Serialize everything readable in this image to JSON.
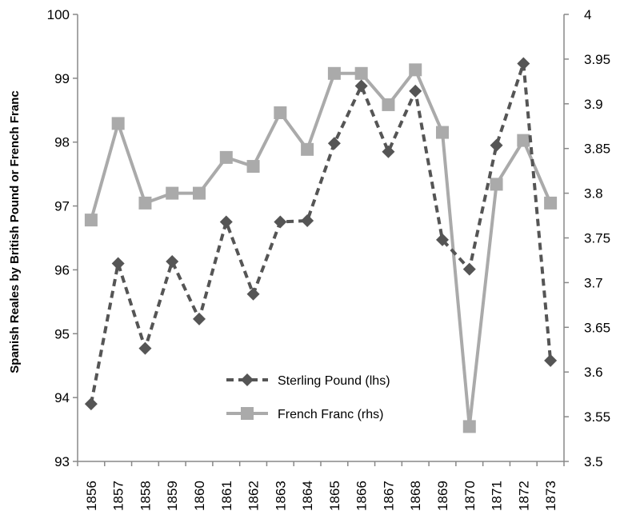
{
  "chart_data": {
    "type": "line",
    "title": "",
    "xlabel": "",
    "ylabel": "Spanish Reales by British  Pound or French Franc",
    "categories": [
      "1856",
      "1857",
      "1858",
      "1859",
      "1860",
      "1861",
      "1862",
      "1863",
      "1864",
      "1865",
      "1866",
      "1867",
      "1868",
      "1869",
      "1870",
      "1871",
      "1872",
      "1873"
    ],
    "y_left": {
      "min": 93,
      "max": 100,
      "ticks": [
        "93",
        "94",
        "95",
        "96",
        "97",
        "98",
        "99",
        "100"
      ]
    },
    "y_right": {
      "min": 3.5,
      "max": 4,
      "ticks": [
        "3.5",
        "3.55",
        "3.6",
        "3.65",
        "3.7",
        "3.75",
        "3.8",
        "3.85",
        "3.9",
        "3.95",
        "4"
      ]
    },
    "grid": false,
    "legend_position": "bottom-center",
    "series": [
      {
        "name": "Sterling Pound (lhs)",
        "axis": "left",
        "color": "#555555",
        "style": "dashed",
        "marker": "diamond",
        "values": [
          93.9,
          96.1,
          94.77,
          96.13,
          95.23,
          96.75,
          95.62,
          96.75,
          96.77,
          97.98,
          98.88,
          97.85,
          98.8,
          96.47,
          96.01,
          97.95,
          99.23,
          94.58
        ]
      },
      {
        "name": "French Franc (rhs)",
        "axis": "right",
        "color": "#aaaaaa",
        "style": "solid",
        "marker": "square",
        "values": [
          3.77,
          3.878,
          3.789,
          3.8,
          3.8,
          3.84,
          3.83,
          3.89,
          3.849,
          3.934,
          3.934,
          3.899,
          3.938,
          3.868,
          3.539,
          3.81,
          3.859,
          3.789
        ]
      }
    ]
  }
}
